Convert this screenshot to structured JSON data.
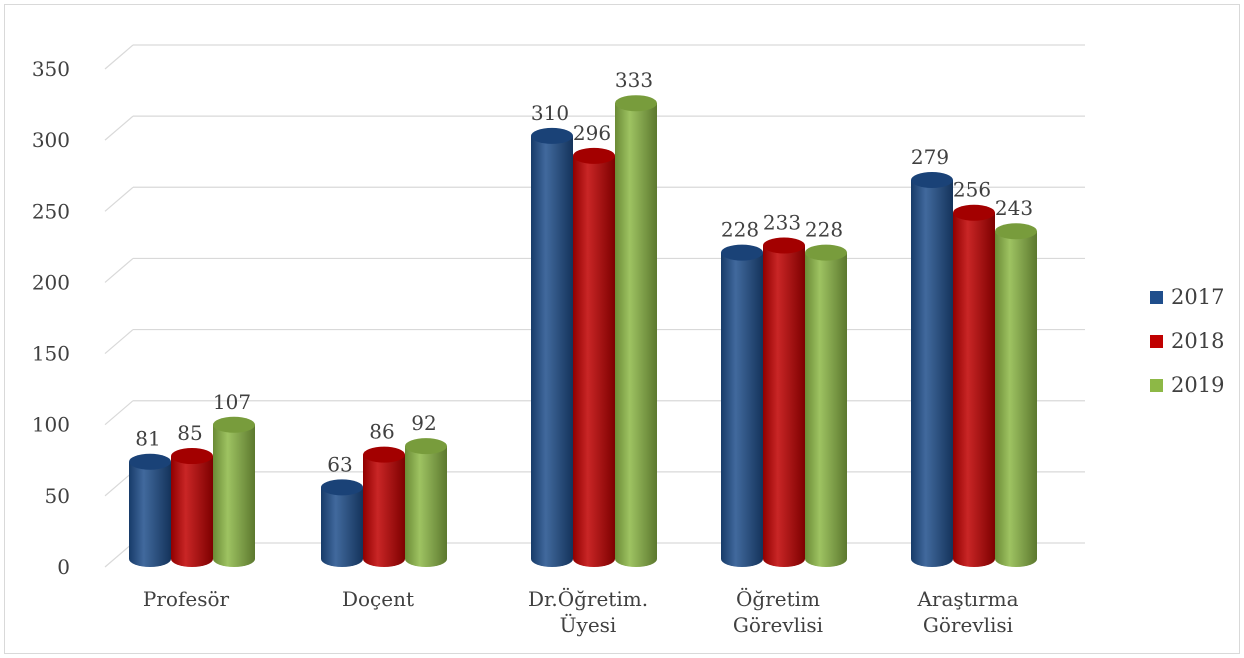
{
  "chart_data": {
    "type": "bar",
    "title": "",
    "xlabel": "",
    "ylabel": "",
    "categories": [
      [
        "Profesör"
      ],
      [
        "Doçent"
      ],
      [
        "Dr.Öğretim.",
        "Üyesi"
      ],
      [
        "Öğretim",
        "Görevlisi"
      ],
      [
        "Araştırma",
        "Görevlisi"
      ]
    ],
    "series": [
      {
        "name": "2017",
        "values": [
          81,
          63,
          310,
          228,
          279
        ],
        "color": "#1f4e8c"
      },
      {
        "name": "2018",
        "values": [
          85,
          86,
          296,
          233,
          256
        ],
        "color": "#c00000"
      },
      {
        "name": "2019",
        "values": [
          107,
          92,
          333,
          228,
          243
        ],
        "color": "#8db846"
      }
    ],
    "y_ticks": [
      0,
      50,
      100,
      150,
      200,
      250,
      300,
      350
    ],
    "ylim": [
      0,
      350
    ],
    "grid": true,
    "legend_position": "right"
  }
}
